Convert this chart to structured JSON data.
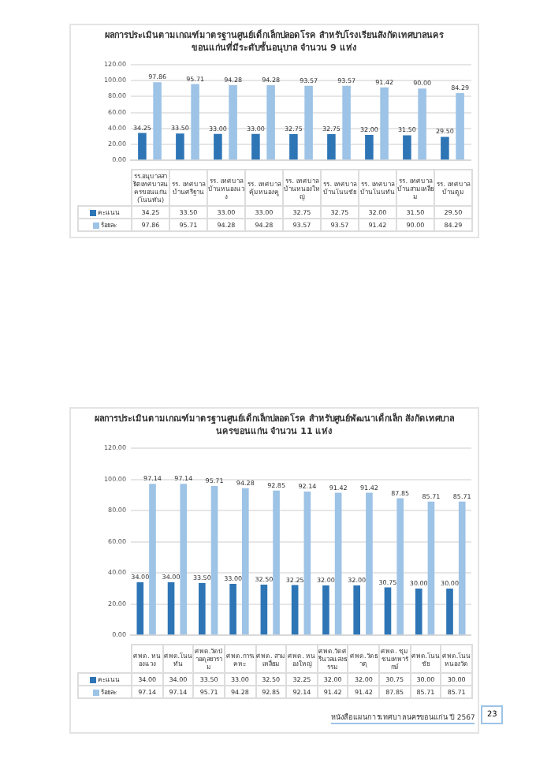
{
  "chart_data": [
    {
      "type": "bar",
      "title": "ผลการประเมินตามเกณฑ์มาตรฐานศูนย์เด็กเล็กปลอดโรค สำหรับโรงเรียนสังกัดเทศบาลนครขอนแก่นที่มีระดับชั้นอนุบาล จำนวน 9 แห่ง",
      "categories": [
        "รร.อนุบาลสาธิตเทศบาลนครขอนแก่น (โนนทัน)",
        "รร. เทศบาลบ้านศรีฐาน",
        "รร. เทศบาลบ้านหนองแวง",
        "รร. เทศบาลคุ้มหนองคู",
        "รร. เทศบาลบ้านหนองใหญ่",
        "รร. เทศบาลบ้านโนนชัย",
        "รร. เทศบาลบ้านโนนทัน",
        "รร. เทศบาลบ้านสามเหลี่ยม",
        "รร. เทศบาลบ้านตูม"
      ],
      "series": [
        {
          "name": "คะแนน",
          "color": "#2e75b6",
          "values": [
            34.25,
            33.5,
            33.0,
            33.0,
            32.75,
            32.75,
            32.0,
            31.5,
            29.5
          ],
          "value_labels": [
            "34.25",
            "33.50",
            "33.00",
            "33.00",
            "32.75",
            "32.75",
            "32.00",
            "31.50",
            "29.50"
          ]
        },
        {
          "name": "ร้อยละ",
          "color": "#9dc3e6",
          "values": [
            97.86,
            95.71,
            94.28,
            94.28,
            93.57,
            93.57,
            91.42,
            90.0,
            84.29
          ],
          "value_labels": [
            "97.86",
            "95.71",
            "94.28",
            "94.28",
            "93.57",
            "93.57",
            "91.42",
            "90.00",
            "84.29"
          ]
        }
      ],
      "ylim": [
        0,
        120
      ],
      "yticks": [
        {
          "value": 0,
          "label": "0.00"
        },
        {
          "value": 20,
          "label": "20.00"
        },
        {
          "value": 40,
          "label": "40.00"
        },
        {
          "value": 60,
          "label": "60.00"
        },
        {
          "value": 80,
          "label": "80.00"
        },
        {
          "value": 100,
          "label": "100.00"
        },
        {
          "value": 120,
          "label": "120.00"
        }
      ],
      "grid": "y",
      "legend": "bottom"
    },
    {
      "type": "bar",
      "title": "ผลการประเมินตามเกณฑ์มาตรฐานศูนย์เด็กเล็กปลอดโรค สำหรับศูนย์พัฒนาเด็กเล็ก สังกัดเทศบาลนครขอนแก่น จำนวน 11 แห่ง",
      "categories": [
        "ศพด. หนองแวง",
        "ศพด.โนนทัน",
        "ศพด.วัดป่าอดุลยาราม",
        "ศพด.การเคหะ",
        "ศพด. สามเหลี่ยม",
        "ศพด. หนองใหญ่",
        "ศพด.วัดศรีนวลแสงธรรม",
        "ศพด.วัดธาตุ",
        "ศพด. ชุมชนเทพารักษ์",
        "ศพด.โนนชัย",
        "ศพด.โนนหนองวัด"
      ],
      "series": [
        {
          "name": "คะแนน",
          "color": "#2e75b6",
          "values": [
            34.0,
            34.0,
            33.5,
            33.0,
            32.5,
            32.25,
            32.0,
            32.0,
            30.75,
            30.0,
            30.0
          ],
          "value_labels": [
            "34.00",
            "34.00",
            "33.50",
            "33.00",
            "32.50",
            "32.25",
            "32.00",
            "32.00",
            "30.75",
            "30.00",
            "30.00"
          ]
        },
        {
          "name": "ร้อยละ",
          "color": "#9dc3e6",
          "values": [
            97.14,
            97.14,
            95.71,
            94.28,
            92.85,
            92.14,
            91.42,
            91.42,
            87.85,
            85.71,
            85.71
          ],
          "value_labels": [
            "97.14",
            "97.14",
            "95.71",
            "94.28",
            "92.85",
            "92.14",
            "91.42",
            "91.42",
            "87.85",
            "85.71",
            "85.71"
          ]
        }
      ],
      "ylim": [
        0,
        120
      ],
      "yticks": [
        {
          "value": 0,
          "label": "0.00"
        },
        {
          "value": 20,
          "label": "20.00"
        },
        {
          "value": 40,
          "label": "40.00"
        },
        {
          "value": 60,
          "label": "60.00"
        },
        {
          "value": 80,
          "label": "80.00"
        },
        {
          "value": 100,
          "label": "100.00"
        },
        {
          "value": 120,
          "label": "120.00"
        }
      ],
      "grid": "y",
      "legend": "bottom",
      "annotations": [
        "หนังสือแผนการเทศบาลนครขอนแก่น ปี 2567",
        "23"
      ]
    }
  ]
}
